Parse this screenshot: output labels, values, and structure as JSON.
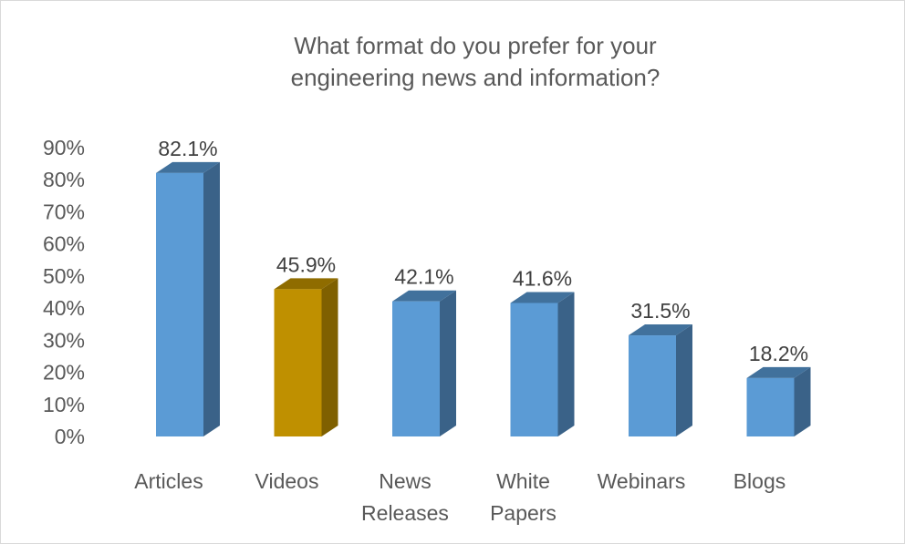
{
  "chart_data": {
    "type": "bar",
    "title": "What format do you prefer for your engineering news and information?",
    "title_lines": [
      "What format do you prefer for your",
      "engineering news and information?"
    ],
    "categories": [
      "Articles",
      "Videos",
      "News Releases",
      "White Papers",
      "Webinars",
      "Blogs"
    ],
    "category_lines": [
      [
        "Articles"
      ],
      [
        "Videos"
      ],
      [
        "News",
        "Releases"
      ],
      [
        "White",
        "Papers"
      ],
      [
        "Webinars"
      ],
      [
        "Blogs"
      ]
    ],
    "values": [
      82.1,
      45.9,
      42.1,
      41.6,
      31.5,
      18.2
    ],
    "data_labels": [
      "82.1%",
      "45.9%",
      "42.1%",
      "41.6%",
      "31.5%",
      "18.2%"
    ],
    "y_ticks": [
      "0%",
      "10%",
      "20%",
      "30%",
      "40%",
      "50%",
      "60%",
      "70%",
      "80%",
      "90%"
    ],
    "ylim": [
      0,
      90
    ],
    "grid": false,
    "bar_style": "3d",
    "colors": {
      "default_front": "#5b9bd5",
      "default_top": "#41719c",
      "default_side": "#3a6288",
      "highlight_front": "#bf9000",
      "highlight_top": "#8f6c00",
      "highlight_side": "#7f6000"
    },
    "highlight_category": "Videos"
  }
}
